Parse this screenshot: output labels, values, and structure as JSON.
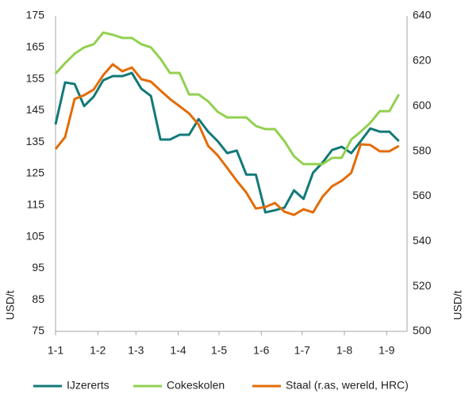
{
  "chart_data": {
    "type": "line",
    "ylabel": "USD/t",
    "y2label": "USD/t",
    "xlim": [
      0,
      258
    ],
    "xticks": [
      {
        "value": 0,
        "label": "1-1"
      },
      {
        "value": 31,
        "label": "1-2"
      },
      {
        "value": 59,
        "label": "1-3"
      },
      {
        "value": 90,
        "label": "1-4"
      },
      {
        "value": 120,
        "label": "1-5"
      },
      {
        "value": 151,
        "label": "1-6"
      },
      {
        "value": 181,
        "label": "1-7"
      },
      {
        "value": 212,
        "label": "1-8"
      },
      {
        "value": 243,
        "label": "1-9"
      }
    ],
    "ylim": [
      75,
      175
    ],
    "yticks": [
      75,
      85,
      95,
      105,
      115,
      125,
      135,
      145,
      155,
      165,
      175
    ],
    "y2lim": [
      500,
      640
    ],
    "y2ticks": [
      500,
      520,
      540,
      560,
      580,
      600,
      620,
      640
    ],
    "grid": false,
    "legend": "bottom",
    "x": [
      0,
      7,
      14,
      21,
      28,
      35,
      42,
      49,
      56,
      63,
      70,
      77,
      84,
      91,
      98,
      105,
      112,
      119,
      126,
      133,
      140,
      147,
      154,
      161,
      168,
      175,
      182,
      189,
      196,
      203,
      210,
      217,
      224,
      231,
      238,
      245,
      252
    ],
    "series": [
      {
        "name": "IJzererts",
        "color": "#127a78",
        "axis": "y",
        "values": [
          140.6,
          153.9,
          153.4,
          146.4,
          149.4,
          154.6,
          155.9,
          155.9,
          156.9,
          151.9,
          149.6,
          135.8,
          135.8,
          137.3,
          137.3,
          142.3,
          138.3,
          135.3,
          131.5,
          132.3,
          124.7,
          124.7,
          112.7,
          113.4,
          114.2,
          119.7,
          117,
          125.3,
          128.5,
          132.5,
          133.5,
          131.5,
          135.3,
          139.3,
          138.3,
          138.3,
          135.3
        ]
      },
      {
        "name": "Cokeskolen",
        "color": "#92d050",
        "axis": "y",
        "values": [
          156.7,
          160,
          163,
          165,
          166,
          169.7,
          169,
          168,
          168,
          166,
          165,
          161.4,
          156.9,
          156.9,
          150.1,
          150.1,
          147.9,
          144.6,
          142.8,
          142.8,
          142.8,
          140.1,
          139.1,
          139.1,
          135.3,
          130.5,
          128,
          128,
          128,
          130,
          130,
          135.8,
          138.3,
          141.1,
          144.8,
          144.8,
          150.1
        ]
      },
      {
        "name": "Staal (r.as, wereld, HRC)",
        "color": "#e36c09",
        "axis": "y2",
        "values": [
          580.9,
          586.2,
          603.1,
          604.8,
          607.3,
          613.7,
          618.5,
          615.4,
          617.1,
          611.9,
          610.8,
          606.9,
          603.1,
          599.9,
          596.7,
          591.8,
          582.3,
          578.1,
          572.5,
          566.8,
          561.6,
          554.5,
          555.2,
          557,
          553.1,
          551.7,
          554.2,
          552.8,
          559.8,
          564.4,
          566.8,
          570.3,
          583,
          582.7,
          579.9,
          579.9,
          582.3
        ]
      }
    ]
  }
}
